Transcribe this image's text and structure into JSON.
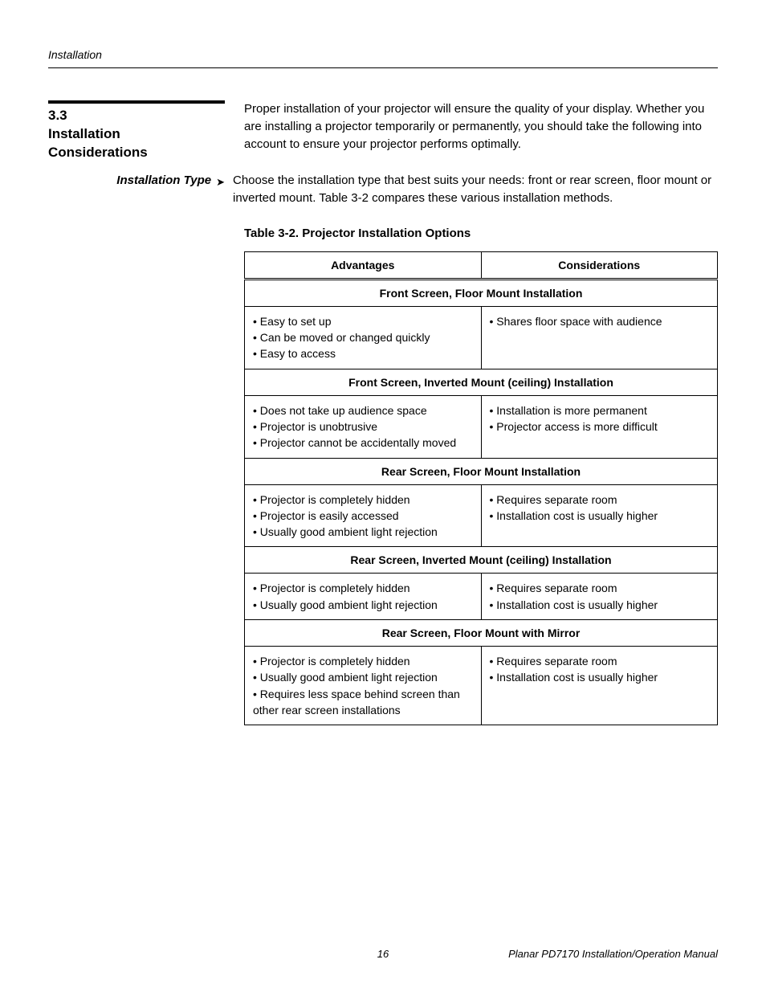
{
  "header": {
    "section": "Installation"
  },
  "section": {
    "number": "3.3",
    "title_l1": "Installation",
    "title_l2": "Considerations",
    "intro": "Proper installation of your projector will ensure the quality of your display. Whether you are installing a projector temporarily or permanently, you should take the following into account to ensure your projector performs optimally."
  },
  "sub": {
    "label": "Installation Type",
    "text": "Choose the installation type that best suits your needs: front or rear screen, floor mount or inverted mount. Table 3-2 compares these various installation methods."
  },
  "table": {
    "caption": "Table 3-2. Projector Installation Options",
    "col1": "Advantages",
    "col2": "Considerations",
    "groups": [
      {
        "title": "Front Screen, Floor Mount Installation",
        "adv": [
          "• Easy to set up",
          "• Can be moved or changed quickly",
          "• Easy to access"
        ],
        "con": [
          "• Shares floor space with audience"
        ]
      },
      {
        "title": "Front Screen, Inverted Mount (ceiling) Installation",
        "adv": [
          "• Does not take up audience space",
          "• Projector is unobtrusive",
          "• Projector cannot be accidentally moved"
        ],
        "con": [
          "• Installation is more permanent",
          "• Projector access is more difficult"
        ]
      },
      {
        "title": "Rear Screen, Floor Mount Installation",
        "adv": [
          "• Projector is completely hidden",
          "• Projector is easily accessed",
          "• Usually good ambient light rejection"
        ],
        "con": [
          "• Requires separate room",
          "• Installation cost is usually higher"
        ]
      },
      {
        "title": "Rear Screen, Inverted Mount (ceiling) Installation",
        "adv": [
          "• Projector is completely hidden",
          "• Usually good ambient light rejection"
        ],
        "con": [
          "• Requires separate room",
          "• Installation cost is usually higher"
        ]
      },
      {
        "title": "Rear Screen, Floor Mount with Mirror",
        "adv": [
          "• Projector is completely hidden",
          "• Usually good ambient light rejection",
          "• Requires less space behind screen than other rear screen installations"
        ],
        "con": [
          "• Requires separate room",
          "• Installation cost is usually higher"
        ]
      }
    ]
  },
  "footer": {
    "page": "16",
    "doc": "Planar PD7170 Installation/Operation Manual"
  }
}
